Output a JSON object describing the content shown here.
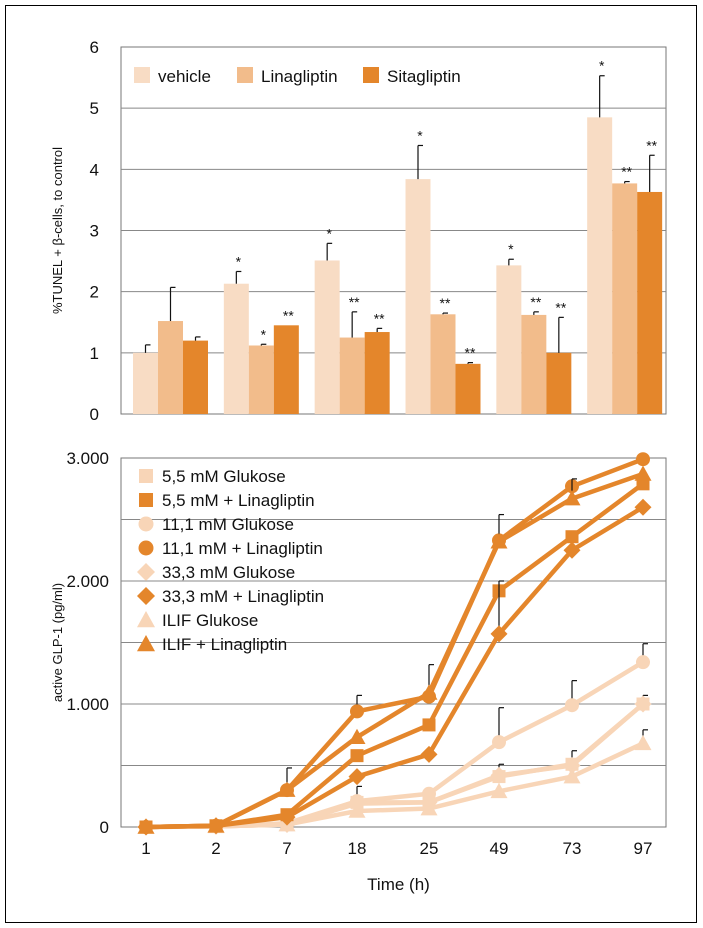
{
  "chart_data": [
    {
      "type": "bar",
      "ylabel": "%TUNEL + β-cells, to control",
      "ylim": [
        0,
        6
      ],
      "yticks": [
        "0",
        "1",
        "2",
        "3",
        "4",
        "5",
        "6"
      ],
      "legend_position": "top",
      "grid": "horizontal",
      "groups": 6,
      "series": [
        {
          "name": "vehicle",
          "color": "#F8DCC4",
          "values": [
            1.0,
            2.13,
            2.51,
            3.84,
            2.43,
            4.85
          ],
          "errors": [
            0.13,
            0.2,
            0.28,
            0.55,
            0.1,
            0.68
          ],
          "sig": [
            "",
            "*",
            "*",
            "*",
            "*",
            "*"
          ]
        },
        {
          "name": "Linagliptin",
          "color": "#F2BC8B",
          "values": [
            1.52,
            1.12,
            1.25,
            1.63,
            1.62,
            3.77
          ],
          "errors": [
            0.55,
            0.02,
            0.42,
            0.02,
            0.05,
            0.03
          ],
          "sig": [
            "",
            "*",
            "**",
            "**",
            "**",
            "**"
          ]
        },
        {
          "name": "Sitagliptin",
          "color": "#E4862B",
          "values": [
            1.2,
            1.45,
            1.34,
            0.82,
            1.0,
            3.63
          ],
          "errors": [
            0.06,
            0.0,
            0.06,
            0.02,
            0.58,
            0.6
          ],
          "sig": [
            "",
            "**",
            "**",
            "**",
            "**",
            "**"
          ]
        }
      ]
    },
    {
      "type": "line",
      "xlabel": "Time (h)",
      "ylabel": "active GLP-1 (pg/ml)",
      "categories": [
        "1",
        "2",
        "7",
        "18",
        "25",
        "49",
        "73",
        "97"
      ],
      "ylim": [
        0,
        3000
      ],
      "yticks": [
        "0",
        "1.000",
        "2.000",
        "3.000"
      ],
      "legend_position": "top-left",
      "grid": "horizontal",
      "series": [
        {
          "name": "5,5 mM Glukose",
          "marker": "square",
          "color": "#F8D5B7",
          "values": [
            0,
            5,
            20,
            200,
            200,
            410,
            510,
            1000
          ],
          "errors": [
            0,
            0,
            0,
            0,
            0,
            0,
            0,
            0
          ]
        },
        {
          "name": "5,5 mM + Linagliptin",
          "marker": "square",
          "color": "#E4862B",
          "values": [
            0,
            10,
            100,
            580,
            830,
            1920,
            2360,
            2790
          ],
          "errors": [
            0,
            0,
            0,
            0,
            0,
            0,
            0,
            0
          ]
        },
        {
          "name": "11,1 mM Glukose",
          "marker": "circle",
          "color": "#F8D5B7",
          "values": [
            0,
            5,
            30,
            210,
            270,
            690,
            990,
            1340
          ],
          "errors": [
            0,
            0,
            0,
            120,
            0,
            280,
            200,
            150
          ]
        },
        {
          "name": "11,1 mM + Linagliptin",
          "marker": "circle",
          "color": "#E4862B",
          "values": [
            0,
            10,
            300,
            940,
            1060,
            2330,
            2770,
            2990
          ],
          "errors": [
            0,
            0,
            0,
            130,
            0,
            0,
            0,
            0
          ]
        },
        {
          "name": "33,3 mM Glukose",
          "marker": "diamond",
          "color": "#F8D5B7",
          "values": [
            0,
            5,
            20,
            190,
            200,
            420,
            500,
            1000
          ],
          "errors": [
            0,
            0,
            0,
            0,
            0,
            90,
            120,
            70
          ]
        },
        {
          "name": "33,3 mM + Linagliptin",
          "marker": "diamond",
          "color": "#E4862B",
          "values": [
            0,
            10,
            80,
            410,
            590,
            1570,
            2250,
            2600
          ],
          "errors": [
            0,
            0,
            0,
            0,
            0,
            430,
            0,
            0
          ]
        },
        {
          "name": "ILIF Glukose",
          "marker": "triangle",
          "color": "#F8D5B7",
          "values": [
            0,
            5,
            20,
            130,
            150,
            290,
            410,
            680
          ],
          "errors": [
            0,
            0,
            0,
            0,
            0,
            0,
            0,
            110
          ]
        },
        {
          "name": "ILIF + Linagliptin",
          "marker": "triangle",
          "color": "#E4862B",
          "values": [
            0,
            10,
            300,
            730,
            1090,
            2320,
            2670,
            2870
          ],
          "errors": [
            0,
            0,
            180,
            0,
            230,
            220,
            160,
            0
          ]
        }
      ]
    }
  ]
}
